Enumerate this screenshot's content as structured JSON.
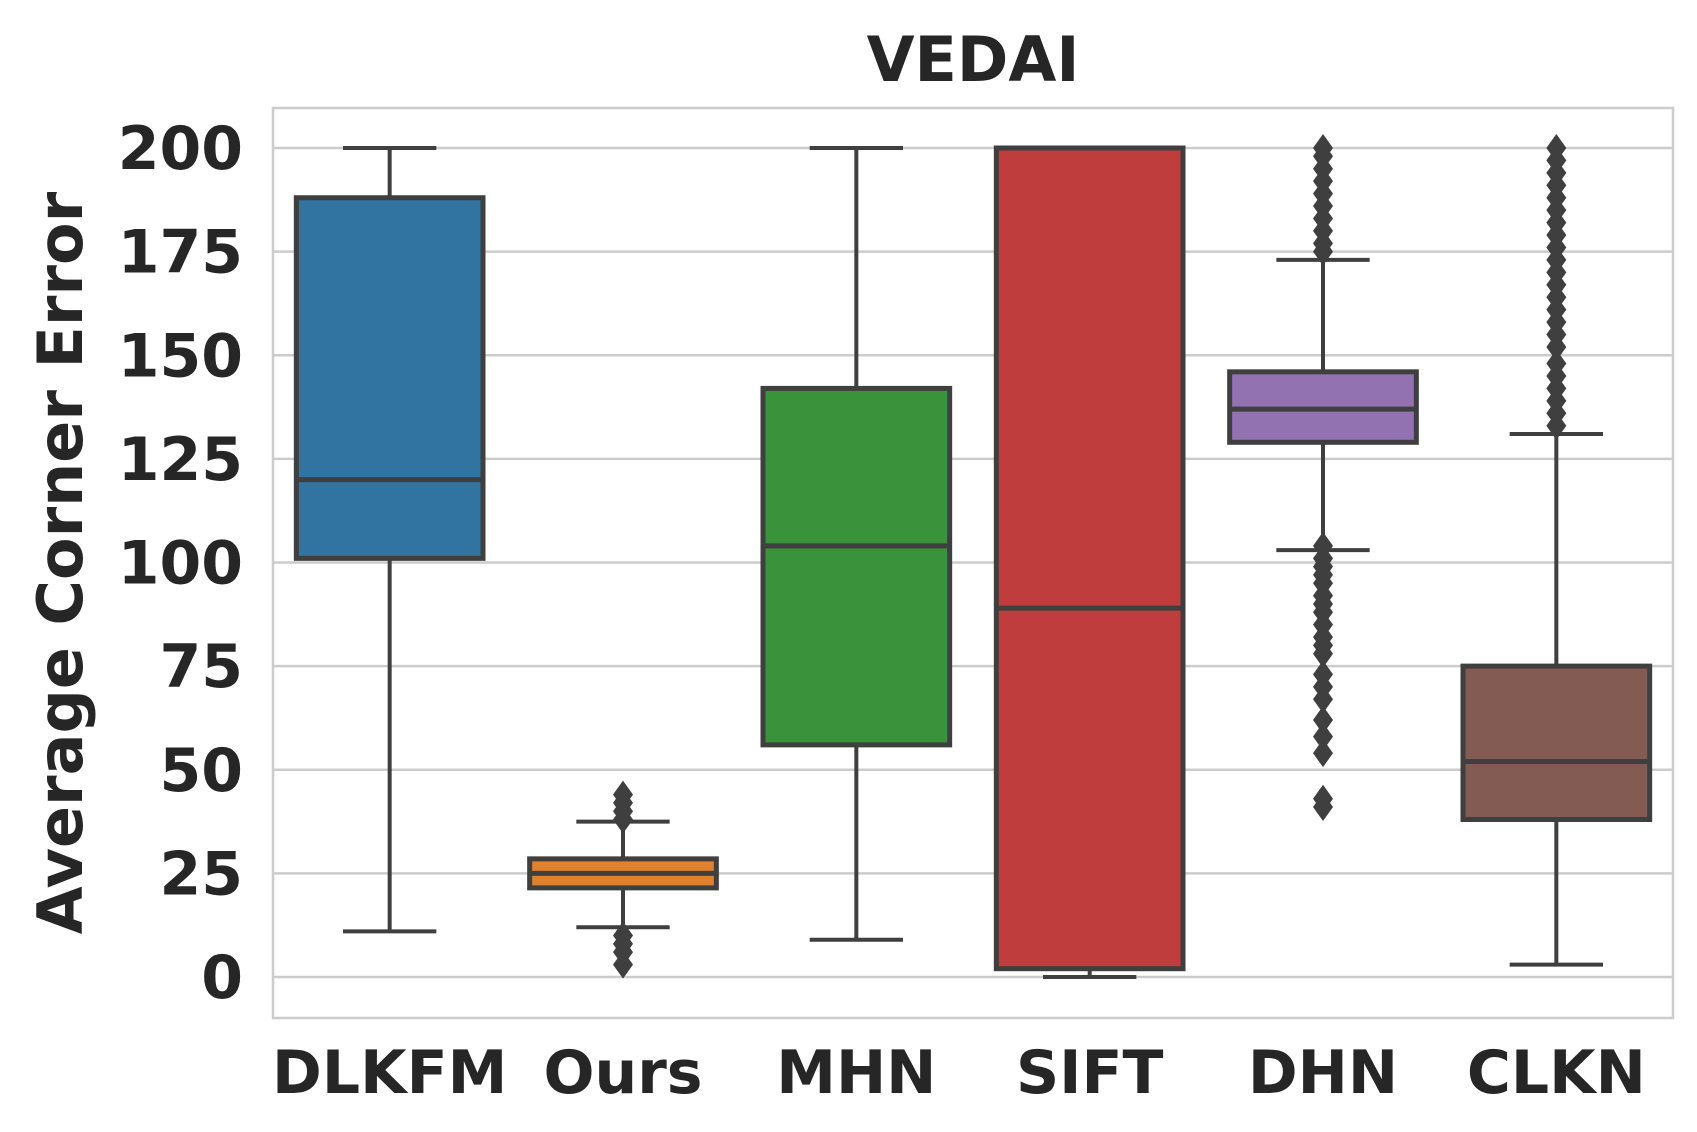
{
  "chart_data": {
    "type": "box",
    "title": "VEDAI",
    "xlabel": "",
    "ylabel": "Average Corner Error",
    "ylim": [
      -10,
      210
    ],
    "yticks": [
      0,
      25,
      50,
      75,
      100,
      125,
      150,
      175,
      200
    ],
    "grid": true,
    "categories": [
      "DLKFM",
      "Ours",
      "MHN",
      "SIFT",
      "DHN",
      "CLKN"
    ],
    "colors": [
      "#3274a1",
      "#e1812c",
      "#3a923a",
      "#c03d3e",
      "#9372b2",
      "#845b53"
    ],
    "boxes": [
      {
        "name": "DLKFM",
        "whisker_low": 11,
        "q1": 101,
        "median": 120,
        "q3": 188,
        "whisker_high": 200,
        "outliers": []
      },
      {
        "name": "Ours",
        "whisker_low": 12,
        "q1": 21.5,
        "median": 25,
        "q3": 28.5,
        "whisker_high": 37.5,
        "outliers": [
          3,
          6,
          8,
          10,
          38,
          40,
          42,
          44
        ]
      },
      {
        "name": "MHN",
        "whisker_low": 9,
        "q1": 56,
        "median": 104,
        "q3": 142,
        "whisker_high": 200,
        "outliers": []
      },
      {
        "name": "SIFT",
        "whisker_low": 0,
        "q1": 2,
        "median": 89,
        "q3": 200,
        "whisker_high": 200,
        "outliers": []
      },
      {
        "name": "DHN",
        "whisker_low": 103,
        "q1": 129,
        "median": 137,
        "q3": 146,
        "whisker_high": 173,
        "outliers": [
          41,
          43,
          54,
          58,
          62,
          67,
          70,
          73,
          78,
          80,
          82,
          85,
          88,
          90,
          92,
          95,
          97,
          99,
          101,
          104,
          175,
          177,
          180,
          183,
          186,
          189,
          192,
          195,
          198,
          200
        ]
      },
      {
        "name": "CLKN",
        "whisker_low": 3,
        "q1": 38,
        "median": 52,
        "q3": 75,
        "whisker_high": 131,
        "outliers": [
          133,
          136,
          139,
          142,
          145,
          148,
          152,
          155,
          158,
          161,
          164,
          167,
          170,
          173,
          176,
          179,
          182,
          185,
          188,
          191,
          194,
          197,
          200
        ]
      }
    ]
  }
}
